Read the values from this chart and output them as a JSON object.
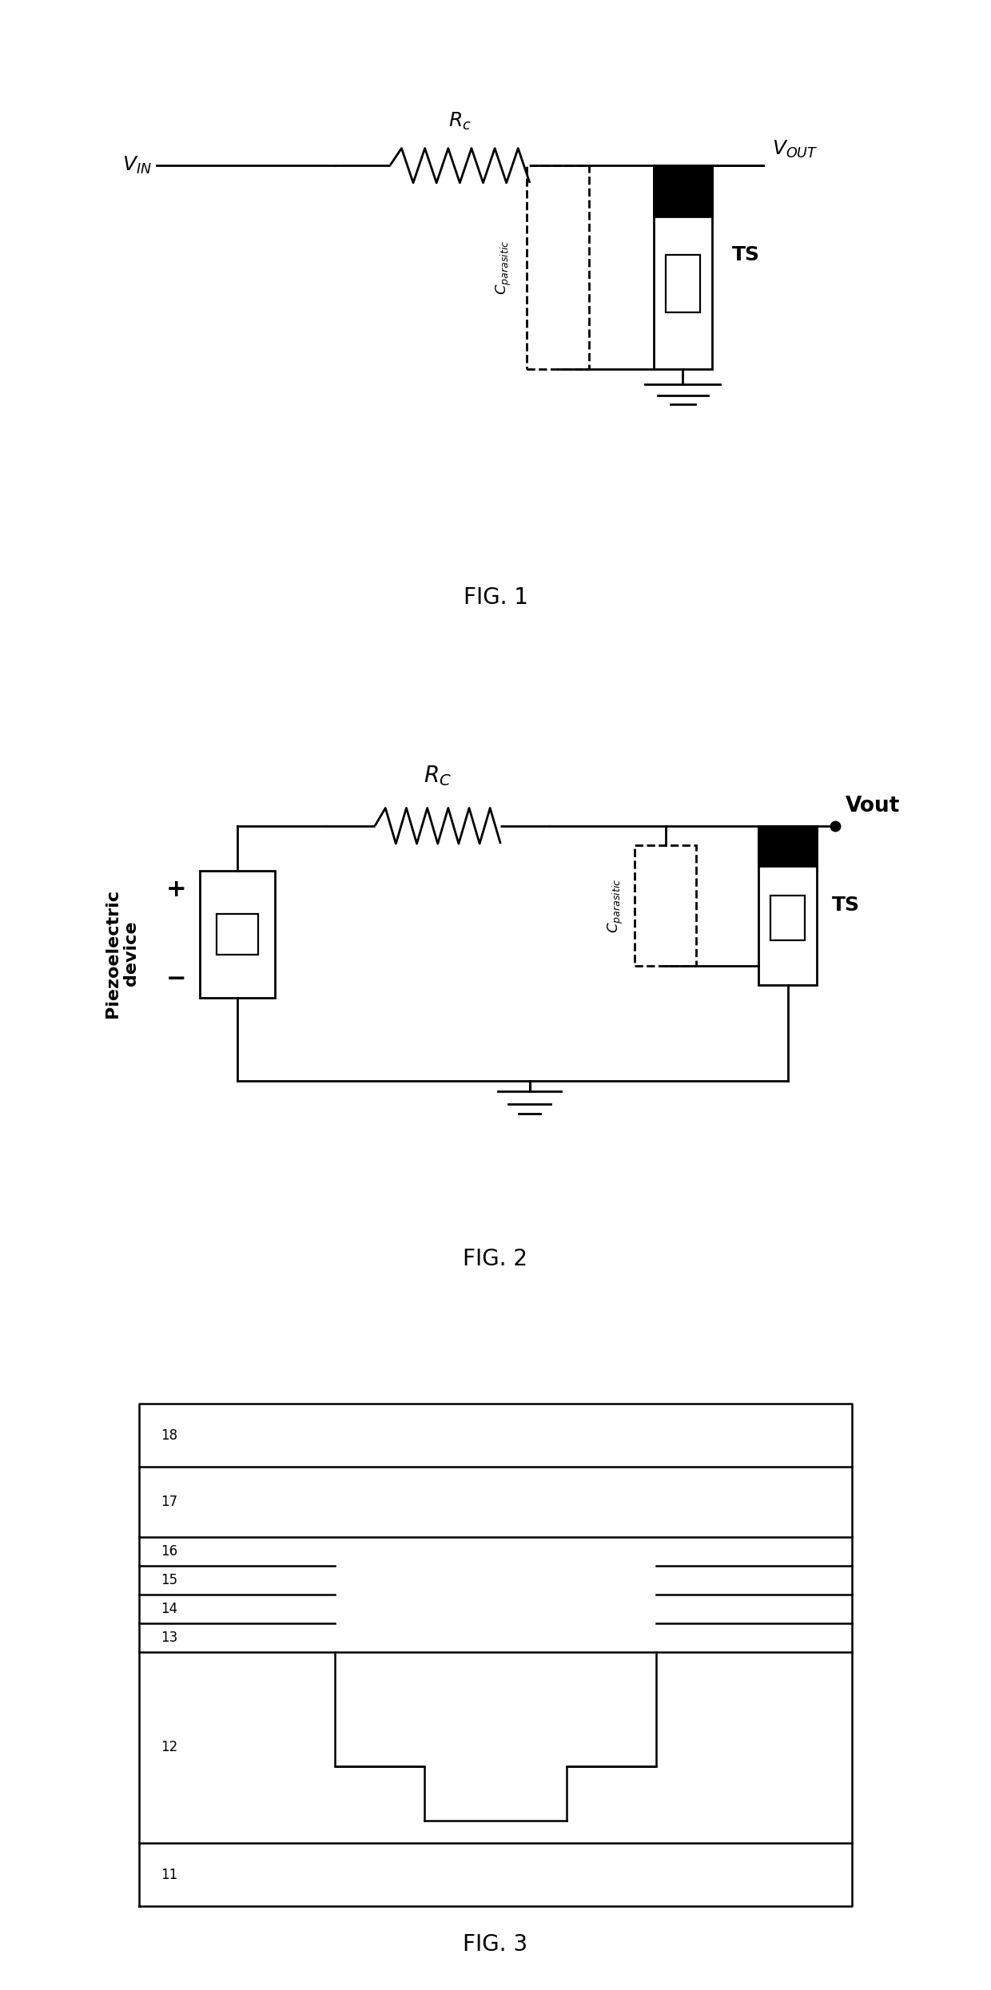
{
  "bg_color": "#ffffff",
  "line_color": "#000000",
  "lw_main": 2.0,
  "fig1": {
    "title": "FIG. 1",
    "vin": "V",
    "vin_sub": "IN",
    "vout": "V",
    "vout_sub": "OUT",
    "rc": "R",
    "rc_sub": "c",
    "cp": "C",
    "cp_sub": "parasitic",
    "ts": "TS"
  },
  "fig2": {
    "title": "FIG. 2",
    "piezo": "Piezoelectric\ndevice",
    "rc": "R",
    "rc_sub": "C",
    "vout": "Vout",
    "cp": "C",
    "cp_sub": "parasitic",
    "ts": "TS"
  },
  "fig3": {
    "title": "FIG. 3",
    "layers": [
      11,
      12,
      13,
      14,
      15,
      16,
      17,
      18
    ]
  }
}
